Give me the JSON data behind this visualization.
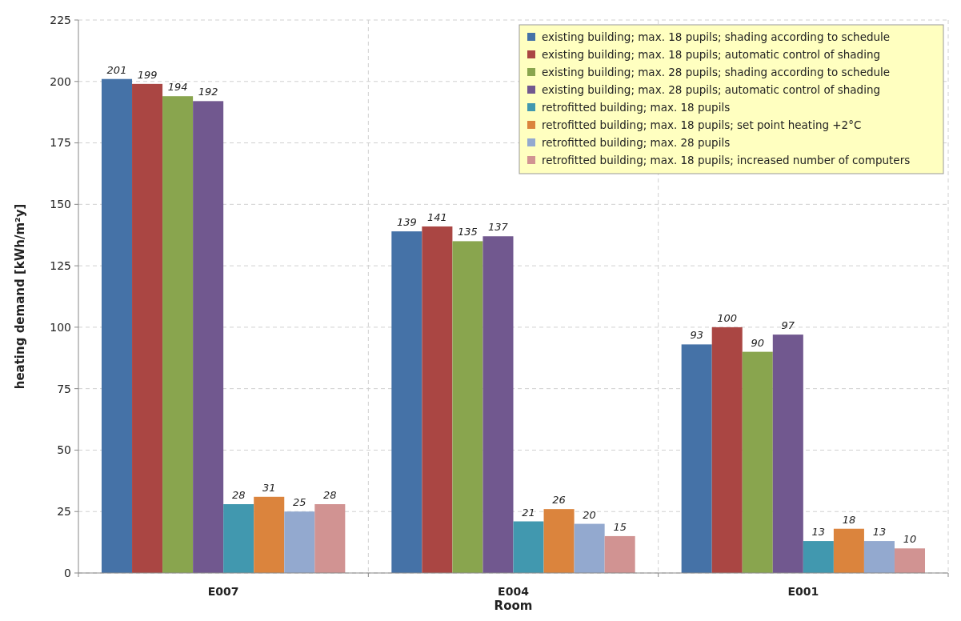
{
  "chart_data": {
    "type": "bar",
    "xlabel": "Room",
    "ylabel": "heating demand [kWh/m²y]",
    "categories": [
      "E007",
      "E004",
      "E001"
    ],
    "series": [
      {
        "name": "existing building; max. 18 pupils; shading according to schedule",
        "color": "#4572a7",
        "values": [
          201,
          139,
          93
        ]
      },
      {
        "name": "existing building; max. 18 pupils; automatic control of shading",
        "color": "#aa4643",
        "values": [
          199,
          141,
          100
        ]
      },
      {
        "name": "existing building; max. 28 pupils; shading according to schedule",
        "color": "#89a54e",
        "values": [
          194,
          135,
          90
        ]
      },
      {
        "name": "existing building; max. 28 pupils; automatic control of shading",
        "color": "#71588f",
        "values": [
          192,
          137,
          97
        ]
      },
      {
        "name": "retrofitted building; max. 18 pupils",
        "color": "#4198af",
        "values": [
          28,
          21,
          13
        ]
      },
      {
        "name": "retrofitted building; max. 18 pupils; set point heating +2°C",
        "color": "#db843d",
        "values": [
          31,
          26,
          18
        ]
      },
      {
        "name": "retrofitted building; max. 28 pupils",
        "color": "#93a9cf",
        "values": [
          25,
          20,
          13
        ]
      },
      {
        "name": "retrofitted building; max. 18 pupils; increased number of computers",
        "color": "#d19392",
        "values": [
          28,
          15,
          10
        ]
      }
    ],
    "ylim": [
      0,
      225
    ],
    "yticks": [
      0,
      25,
      50,
      75,
      100,
      125,
      150,
      175,
      200,
      225
    ],
    "grid": true,
    "legend": "top right",
    "data_labels": true
  }
}
